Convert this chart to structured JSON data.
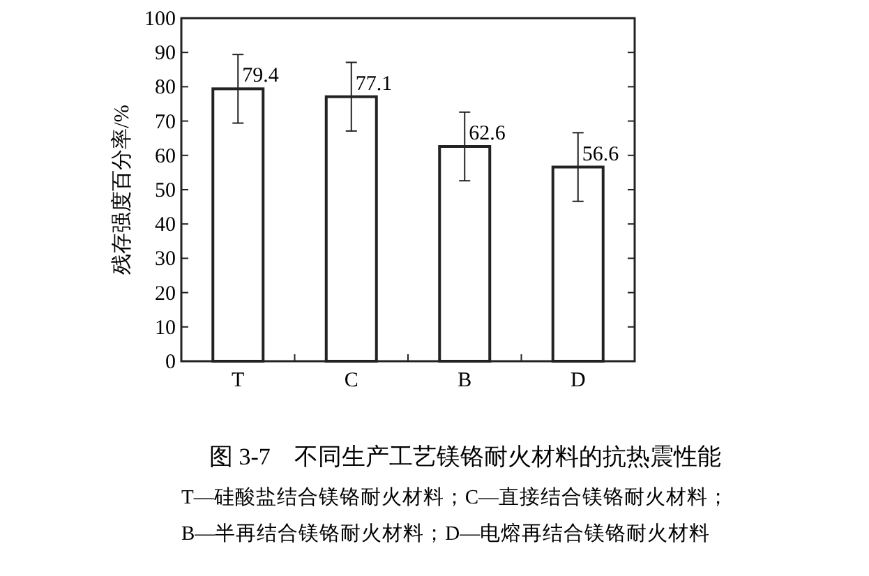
{
  "chart_data": {
    "type": "bar",
    "title": "图 3-7　不同生产工艺镁铬耐火材料的抗热震性能",
    "ylabel": "残存强度百分率/%",
    "categories": [
      "T",
      "C",
      "B",
      "D"
    ],
    "values": [
      79.4,
      77.1,
      62.6,
      56.6
    ],
    "errors": [
      10,
      10,
      10,
      10
    ],
    "color": "#ffffff",
    "data_labels": true,
    "ylim": [
      0,
      100
    ],
    "yticks": [
      0,
      10,
      20,
      30,
      40,
      50,
      60,
      70,
      80,
      90,
      100
    ],
    "annotations": [
      "T—硅酸盐结合镁铬耐火材料；C—直接结合镁铬耐火材料；",
      "B—半再结合镁铬耐火材料；D—电熔再结合镁铬耐火材料"
    ]
  }
}
